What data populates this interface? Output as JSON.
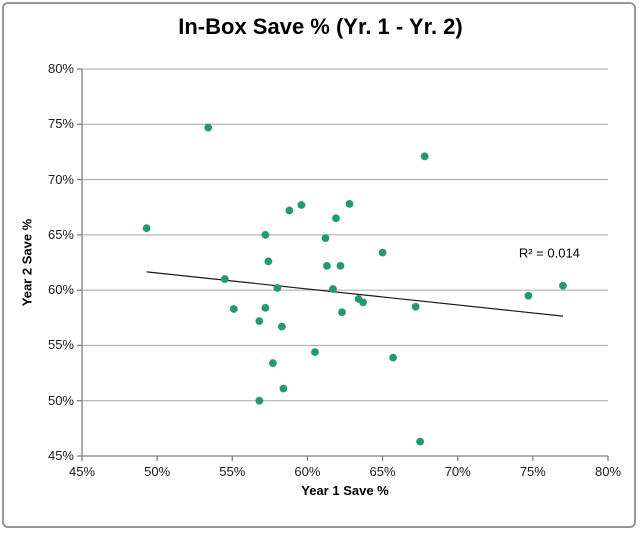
{
  "window": {
    "background": "#ffffff",
    "border_color": "#969696"
  },
  "chart_data": {
    "type": "scatter",
    "title": "In-Box Save % (Yr. 1 - Yr. 2)",
    "xlabel": "Year 1 Save %",
    "ylabel": "Year 2 Save %",
    "xlim": [
      45,
      80
    ],
    "ylim": [
      45,
      80
    ],
    "tick_step": 5,
    "x_tick_labels": [
      "45%",
      "50%",
      "55%",
      "60%",
      "65%",
      "70%",
      "75%",
      "80%"
    ],
    "y_tick_labels": [
      "45%",
      "50%",
      "55%",
      "60%",
      "65%",
      "70%",
      "75%",
      "80%"
    ],
    "grid": "horizontal-only",
    "legend": "none",
    "series": [
      {
        "name": "In-Box Save %",
        "marker": "circle",
        "marker_color": "#18A066",
        "marker_border_color": "#44719F",
        "points": [
          [
            49.3,
            65.6
          ],
          [
            53.4,
            74.7
          ],
          [
            54.5,
            61.0
          ],
          [
            55.1,
            58.3
          ],
          [
            56.8,
            57.2
          ],
          [
            56.8,
            50.0
          ],
          [
            57.2,
            58.4
          ],
          [
            57.2,
            65.0
          ],
          [
            57.4,
            62.6
          ],
          [
            57.7,
            53.4
          ],
          [
            58.0,
            60.2
          ],
          [
            58.3,
            56.7
          ],
          [
            58.4,
            51.1
          ],
          [
            58.8,
            67.2
          ],
          [
            59.6,
            67.7
          ],
          [
            60.5,
            54.4
          ],
          [
            61.2,
            64.7
          ],
          [
            61.3,
            62.2
          ],
          [
            61.7,
            60.1
          ],
          [
            61.9,
            66.5
          ],
          [
            62.2,
            62.2
          ],
          [
            62.3,
            58.0
          ],
          [
            62.8,
            67.8
          ],
          [
            63.4,
            59.2
          ],
          [
            63.7,
            58.9
          ],
          [
            65.0,
            63.4
          ],
          [
            65.7,
            53.9
          ],
          [
            67.2,
            58.5
          ],
          [
            67.5,
            46.3
          ],
          [
            67.8,
            72.1
          ],
          [
            74.7,
            59.5
          ],
          [
            77.0,
            60.4
          ]
        ]
      }
    ],
    "trendline": {
      "type": "linear",
      "x1": 49.3,
      "y1": 61.65,
      "x2": 77.0,
      "y2": 57.65,
      "color": "#1a1a1a",
      "label": "R² = 0.014",
      "label_x": 76.1,
      "label_y": 63.4
    },
    "colors": {
      "gridline": "#A6A6A6",
      "axis": "#808080",
      "text": "#000000"
    }
  }
}
